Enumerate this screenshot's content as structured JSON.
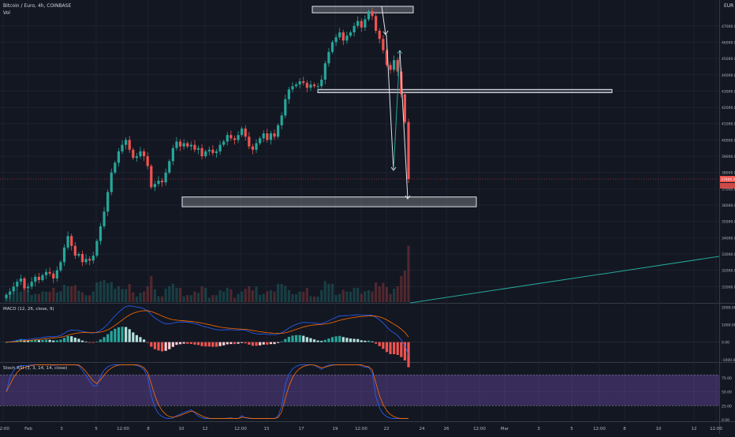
{
  "header": {
    "symbol": "Bitcoin / Euro, 4h, COINBASE",
    "volume_label": "Vol",
    "currency": "EUR"
  },
  "colors": {
    "background": "#131722",
    "grid": "#1e2230",
    "up": "#26a69a",
    "down": "#ef5350",
    "macd_line": "#2962ff",
    "signal_line": "#ff6d00",
    "rsi_k": "#2962ff",
    "rsi_d": "#ff6d00",
    "rsi_band": "#7e57c2",
    "trendline": "#26a69a"
  },
  "chart_data": [
    {
      "type": "candlestick",
      "title": "Bitcoin / Euro, 4h, COINBASE",
      "ylim": [
        30000,
        48200
      ],
      "y_ticks": [
        "47000.00",
        "46000.00",
        "45000.00",
        "44000.00",
        "43000.00",
        "42000.00",
        "41000.00",
        "40000.00",
        "39000.00",
        "38000.00",
        "37000.00",
        "36000.00",
        "35000.00",
        "34000.00",
        "33000.00",
        "32000.00",
        "31000.00"
      ],
      "x_ticks": [
        "12:00",
        "Feb",
        "3",
        "5",
        "12:00",
        "8",
        "10",
        "12",
        "12:00",
        "15",
        "17",
        "19",
        "12:00",
        "22",
        "24",
        "26",
        "12:00",
        "Mar",
        "3",
        "5",
        "12:00",
        "8",
        "10",
        "12",
        "12:00"
      ],
      "last_price_label": "37600.00",
      "last_price": 37600,
      "ohlc_close": [
        30500,
        30700,
        31000,
        31300,
        31500,
        30900,
        31000,
        31300,
        31600,
        31400,
        31700,
        31900,
        31800,
        31500,
        32000,
        32500,
        33400,
        34100,
        33500,
        32900,
        33000,
        32500,
        32700,
        32600,
        32900,
        33800,
        34700,
        35600,
        36800,
        38000,
        38600,
        39300,
        39700,
        40000,
        39400,
        38900,
        39000,
        39300,
        39000,
        38400,
        37100,
        37300,
        37500,
        37400,
        38000,
        38700,
        39500,
        39900,
        39600,
        39800,
        39600,
        39700,
        39400,
        39500,
        39000,
        39300,
        39400,
        39200,
        39300,
        39700,
        39900,
        40300,
        40100,
        40000,
        40300,
        40700,
        40200,
        39600,
        39400,
        39800,
        40100,
        40400,
        40000,
        40400,
        40200,
        40900,
        41500,
        42500,
        43100,
        43300,
        43400,
        43600,
        43500,
        43200,
        43400,
        43300,
        43300,
        43700,
        44700,
        45400,
        46000,
        46300,
        46600,
        46100,
        46400,
        46600,
        47000,
        47300,
        46900,
        47400,
        47900,
        47600,
        46700,
        46200,
        45500,
        44600,
        44300,
        44900,
        44200,
        42800,
        41100,
        37600
      ],
      "support_zone": {
        "low": 35900,
        "high": 36500
      },
      "resistance_zone": {
        "low": 42900,
        "high": 43100
      },
      "top_zone": {
        "low": 47800,
        "high": 48200
      }
    },
    {
      "type": "line",
      "title": "MACD (12, 26, close, 9)",
      "ylim": [
        -1050,
        2150
      ],
      "y_ticks": [
        "2000.00",
        "1000.00",
        "0.00",
        "-1000.00"
      ]
    },
    {
      "type": "line",
      "title": "Stoch RSI (3, 3, 14, 14, close)",
      "ylim": [
        0,
        100
      ],
      "y_ticks": [
        "75.00",
        "50.00",
        "25.00",
        "0.00"
      ],
      "band": [
        25,
        80
      ]
    }
  ]
}
